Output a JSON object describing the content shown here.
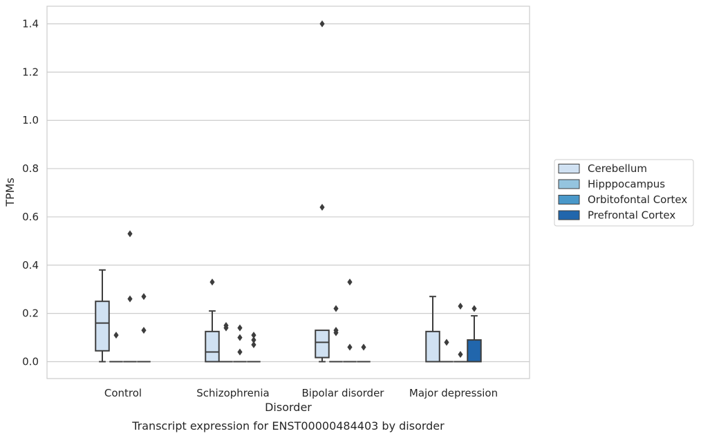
{
  "chart_data": {
    "type": "box",
    "xlabel": "Disorder",
    "ylabel": "TPMs",
    "caption": "Transcript expression for ENST00000484403 by disorder",
    "categories": [
      "Control",
      "Schizophrenia",
      "Bipolar disorder",
      "Major depression"
    ],
    "yticks": [
      "0.0",
      "0.2",
      "0.4",
      "0.6",
      "0.8",
      "1.0",
      "1.2",
      "1.4"
    ],
    "ylim": [
      -0.07,
      1.47
    ],
    "grid": "horizontal",
    "legend_position": "right",
    "series": [
      {
        "name": "Cerebellum",
        "color": "#d0e1f2",
        "boxes": [
          {
            "category": "Control",
            "min": 0.0,
            "q1": 0.045,
            "median": 0.16,
            "q3": 0.25,
            "max": 0.38,
            "outliers": []
          },
          {
            "category": "Schizophrenia",
            "min": 0.0,
            "q1": 0.0,
            "median": 0.04,
            "q3": 0.125,
            "max": 0.21,
            "outliers": [
              0.33
            ]
          },
          {
            "category": "Bipolar disorder",
            "min": 0.0,
            "q1": 0.017,
            "median": 0.08,
            "q3": 0.13,
            "max": 0.13,
            "outliers": [
              1.4,
              0.64
            ]
          },
          {
            "category": "Major depression",
            "min": 0.0,
            "q1": 0.0,
            "median": 0.0,
            "q3": 0.125,
            "max": 0.27,
            "outliers": []
          }
        ]
      },
      {
        "name": "Hipppocampus",
        "color": "#94c4df",
        "boxes": [
          {
            "category": "Control",
            "min": 0.0,
            "q1": 0.0,
            "median": 0.0,
            "q3": 0.0,
            "max": 0.0,
            "outliers": [
              0.11
            ]
          },
          {
            "category": "Schizophrenia",
            "min": 0.0,
            "q1": 0.0,
            "median": 0.0,
            "q3": 0.0,
            "max": 0.0,
            "outliers": [
              0.15,
              0.14
            ]
          },
          {
            "category": "Bipolar disorder",
            "min": 0.0,
            "q1": 0.0,
            "median": 0.0,
            "q3": 0.0,
            "max": 0.0,
            "outliers": [
              0.22,
              0.13,
              0.12
            ]
          },
          {
            "category": "Major depression",
            "min": 0.0,
            "q1": 0.0,
            "median": 0.0,
            "q3": 0.0,
            "max": 0.0,
            "outliers": [
              0.08
            ]
          }
        ]
      },
      {
        "name": "Orbitofontal Cortex",
        "color": "#4a98c9",
        "boxes": [
          {
            "category": "Control",
            "min": 0.0,
            "q1": 0.0,
            "median": 0.0,
            "q3": 0.0,
            "max": 0.0,
            "outliers": [
              0.53,
              0.26
            ]
          },
          {
            "category": "Schizophrenia",
            "min": 0.0,
            "q1": 0.0,
            "median": 0.0,
            "q3": 0.0,
            "max": 0.0,
            "outliers": [
              0.14,
              0.1,
              0.04
            ]
          },
          {
            "category": "Bipolar disorder",
            "min": 0.0,
            "q1": 0.0,
            "median": 0.0,
            "q3": 0.0,
            "max": 0.0,
            "outliers": [
              0.33,
              0.06
            ]
          },
          {
            "category": "Major depression",
            "min": 0.0,
            "q1": 0.0,
            "median": 0.0,
            "q3": 0.0,
            "max": 0.0,
            "outliers": [
              0.23,
              0.03
            ]
          }
        ]
      },
      {
        "name": "Prefrontal Cortex",
        "color": "#2166ac",
        "boxes": [
          {
            "category": "Control",
            "min": 0.0,
            "q1": 0.0,
            "median": 0.0,
            "q3": 0.0,
            "max": 0.0,
            "outliers": [
              0.27,
              0.13
            ]
          },
          {
            "category": "Schizophrenia",
            "min": 0.0,
            "q1": 0.0,
            "median": 0.0,
            "q3": 0.0,
            "max": 0.0,
            "outliers": [
              0.11,
              0.09,
              0.07
            ]
          },
          {
            "category": "Bipolar disorder",
            "min": 0.0,
            "q1": 0.0,
            "median": 0.0,
            "q3": 0.0,
            "max": 0.0,
            "outliers": [
              0.06
            ]
          },
          {
            "category": "Major depression",
            "min": 0.0,
            "q1": 0.0,
            "median": 0.0,
            "q3": 0.09,
            "max": 0.19,
            "outliers": [
              0.22
            ]
          }
        ]
      }
    ]
  }
}
